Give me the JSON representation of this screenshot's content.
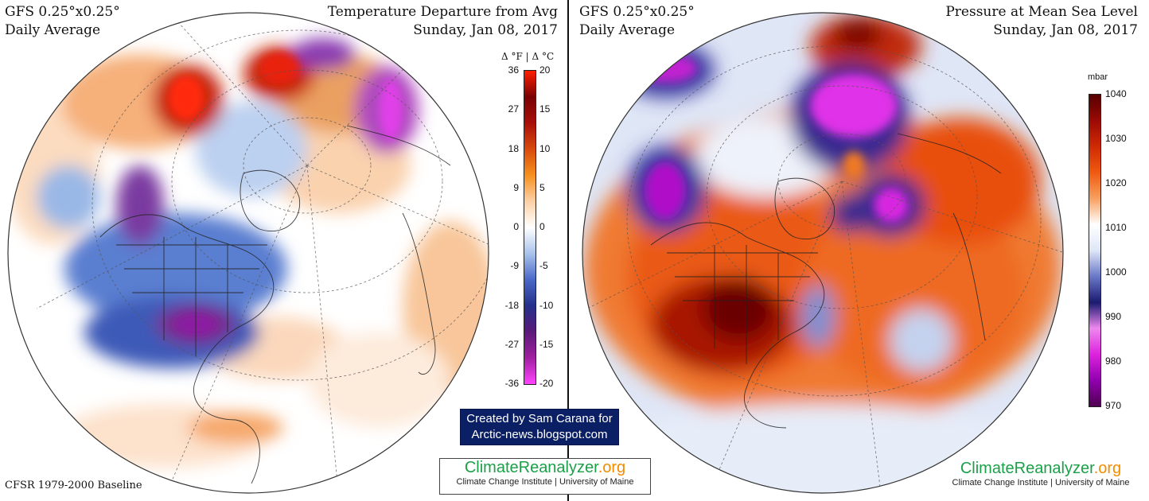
{
  "left_panel": {
    "model": "GFS 0.25°x0.25°",
    "period": "Daily Average",
    "title": "Temperature Departure from Avg",
    "date": "Sunday, Jan 08, 2017",
    "baseline": "CFSR 1979-2000 Baseline",
    "colorbar": {
      "title": "Δ °F  |  Δ °C",
      "ticks_f": [
        "36",
        "27",
        "18",
        "9",
        "0",
        "-9",
        "-18",
        "-27",
        "-36"
      ],
      "ticks_c": [
        "20",
        "15",
        "10",
        "5",
        "0",
        "-5",
        "-10",
        "-15",
        "-20"
      ],
      "colors": [
        "#ff44ff",
        "#a020a0",
        "#5a1a78",
        "#24308a",
        "#4a68c8",
        "#a9c3ec",
        "#ffffff",
        "#fcd0a6",
        "#f6901e",
        "#d84a0c",
        "#a80f08",
        "#7a0204",
        "#ff2000"
      ]
    }
  },
  "right_panel": {
    "model": "GFS 0.25°x0.25°",
    "period": "Daily Average",
    "title": "Pressure at Mean Sea Level",
    "date": "Sunday, Jan 08, 2017",
    "colorbar": {
      "title": "mbar",
      "ticks": [
        "1040",
        "1030",
        "1020",
        "1010",
        "1000",
        "990",
        "980",
        "970"
      ],
      "colors": [
        "#500050",
        "#9000b0",
        "#dd22dd",
        "#ee88ee",
        "#1a1a70",
        "#6a78c8",
        "#dfe6f6",
        "#ffffff",
        "#f8a060",
        "#ef5a10",
        "#d02a04",
        "#9a0a04",
        "#560000"
      ]
    }
  },
  "credit": {
    "line1": "Created by Sam Carana for",
    "line2": "Arctic-news.blogspot.com"
  },
  "brand": {
    "name_a": "ClimateReanalyzer",
    "name_b": ".org",
    "sub": "Climate Change Institute | University of Maine",
    "color_a": "#1aa048",
    "color_b": "#f28c00"
  }
}
